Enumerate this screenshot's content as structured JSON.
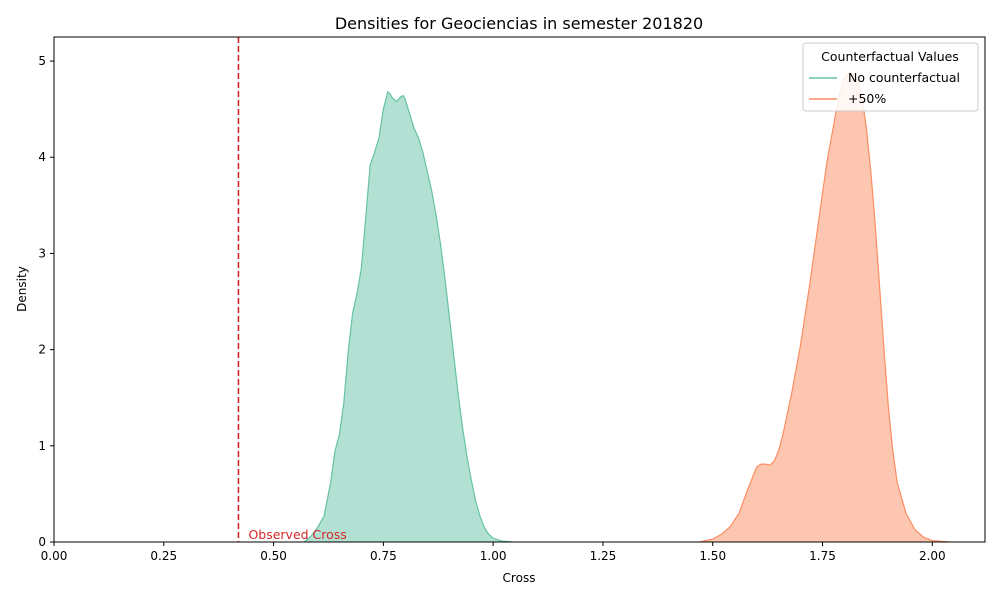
{
  "chart_data": {
    "type": "area",
    "title": "Densities for Geociencias in semester 201820",
    "xlabel": "Cross",
    "ylabel": "Density",
    "xlim": [
      0.0,
      2.12
    ],
    "ylim": [
      0.0,
      5.25
    ],
    "x_ticks": [
      "0.00",
      "0.25",
      "0.50",
      "0.75",
      "1.00",
      "1.25",
      "1.50",
      "1.75",
      "2.00"
    ],
    "y_ticks": [
      "0",
      "1",
      "2",
      "3",
      "4",
      "5"
    ],
    "legend": {
      "title": "Counterfactual Values",
      "placement": "top-right"
    },
    "series": [
      {
        "name": "No counterfactual",
        "color": "#66c2a5",
        "fill": "#b2e0d2",
        "points": [
          [
            0.57,
            0.0
          ],
          [
            0.585,
            0.06
          ],
          [
            0.6,
            0.15
          ],
          [
            0.615,
            0.27
          ],
          [
            0.63,
            0.62
          ],
          [
            0.64,
            0.95
          ],
          [
            0.65,
            1.12
          ],
          [
            0.66,
            1.45
          ],
          [
            0.67,
            1.98
          ],
          [
            0.68,
            2.38
          ],
          [
            0.69,
            2.58
          ],
          [
            0.7,
            2.85
          ],
          [
            0.71,
            3.38
          ],
          [
            0.72,
            3.92
          ],
          [
            0.73,
            4.05
          ],
          [
            0.74,
            4.2
          ],
          [
            0.75,
            4.5
          ],
          [
            0.76,
            4.68
          ],
          [
            0.765,
            4.66
          ],
          [
            0.77,
            4.62
          ],
          [
            0.78,
            4.58
          ],
          [
            0.79,
            4.63
          ],
          [
            0.795,
            4.64
          ],
          [
            0.8,
            4.6
          ],
          [
            0.81,
            4.45
          ],
          [
            0.82,
            4.3
          ],
          [
            0.83,
            4.2
          ],
          [
            0.84,
            4.05
          ],
          [
            0.85,
            3.85
          ],
          [
            0.86,
            3.65
          ],
          [
            0.87,
            3.4
          ],
          [
            0.88,
            3.1
          ],
          [
            0.89,
            2.75
          ],
          [
            0.9,
            2.35
          ],
          [
            0.91,
            1.95
          ],
          [
            0.92,
            1.55
          ],
          [
            0.93,
            1.2
          ],
          [
            0.94,
            0.9
          ],
          [
            0.95,
            0.65
          ],
          [
            0.96,
            0.43
          ],
          [
            0.97,
            0.27
          ],
          [
            0.98,
            0.15
          ],
          [
            0.99,
            0.08
          ],
          [
            1.0,
            0.04
          ],
          [
            1.02,
            0.01
          ],
          [
            1.045,
            0.0
          ]
        ]
      },
      {
        "name": "+50%",
        "color": "#fc8d62",
        "fill": "#fdc6b0",
        "points": [
          [
            1.47,
            0.0
          ],
          [
            1.5,
            0.03
          ],
          [
            1.52,
            0.08
          ],
          [
            1.54,
            0.16
          ],
          [
            1.56,
            0.3
          ],
          [
            1.58,
            0.55
          ],
          [
            1.6,
            0.78
          ],
          [
            1.61,
            0.81
          ],
          [
            1.62,
            0.81
          ],
          [
            1.63,
            0.8
          ],
          [
            1.64,
            0.84
          ],
          [
            1.65,
            0.95
          ],
          [
            1.66,
            1.12
          ],
          [
            1.68,
            1.55
          ],
          [
            1.7,
            2.05
          ],
          [
            1.72,
            2.65
          ],
          [
            1.74,
            3.3
          ],
          [
            1.76,
            3.95
          ],
          [
            1.78,
            4.45
          ],
          [
            1.79,
            4.68
          ],
          [
            1.8,
            4.82
          ],
          [
            1.81,
            4.88
          ],
          [
            1.82,
            4.86
          ],
          [
            1.83,
            4.8
          ],
          [
            1.84,
            4.62
          ],
          [
            1.85,
            4.3
          ],
          [
            1.86,
            3.85
          ],
          [
            1.87,
            3.3
          ],
          [
            1.88,
            2.65
          ],
          [
            1.89,
            2.0
          ],
          [
            1.9,
            1.4
          ],
          [
            1.91,
            0.95
          ],
          [
            1.92,
            0.62
          ],
          [
            1.94,
            0.3
          ],
          [
            1.96,
            0.13
          ],
          [
            1.98,
            0.05
          ],
          [
            2.0,
            0.015
          ],
          [
            2.04,
            0.0
          ]
        ]
      }
    ],
    "reference_line": {
      "x": 0.42,
      "label": "Observed Cross",
      "color": "#d62728"
    }
  }
}
